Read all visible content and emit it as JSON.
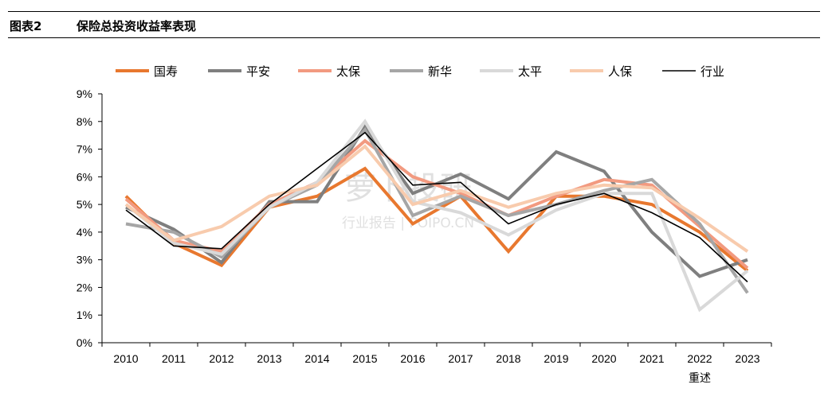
{
  "header": {
    "figure_number": "图表2",
    "title": "保险总投资收益率表现"
  },
  "watermark": {
    "brand": "萝卜投研",
    "sub": "行业报告 | POIPO.CN"
  },
  "colors": {
    "国寿": "#e8782f",
    "平安": "#7f7f7f",
    "太保": "#f29a80",
    "新华": "#a6a6a6",
    "太平": "#d9d9d9",
    "人保": "#f8cbad",
    "行业": "#000000"
  },
  "chart_data": {
    "type": "line",
    "title": "",
    "xlabel": "",
    "ylabel": "",
    "ylim": [
      0,
      9
    ],
    "y_ticks": [
      "0%",
      "1%",
      "2%",
      "3%",
      "4%",
      "5%",
      "6%",
      "7%",
      "8%",
      "9%"
    ],
    "categories": [
      "2010",
      "2011",
      "2012",
      "2013",
      "2014",
      "2015",
      "2016",
      "2017",
      "2018",
      "2019",
      "2020",
      "2021",
      "2022",
      "2023"
    ],
    "category_note": "重述",
    "legend_position": "top",
    "grid": false,
    "series": [
      {
        "name": "国寿",
        "values": [
          5.3,
          3.6,
          2.8,
          4.9,
          5.3,
          6.3,
          4.3,
          5.3,
          3.3,
          5.3,
          5.3,
          5.0,
          4.0,
          2.6
        ]
      },
      {
        "name": "平安",
        "values": [
          4.9,
          4.1,
          2.9,
          5.1,
          5.1,
          7.8,
          5.4,
          6.1,
          5.2,
          6.9,
          6.2,
          4.0,
          2.4,
          3.0
        ]
      },
      {
        "name": "太保",
        "values": [
          5.2,
          3.7,
          3.3,
          5.0,
          5.8,
          7.3,
          6.0,
          5.4,
          4.6,
          5.3,
          5.9,
          5.7,
          4.2,
          2.7
        ]
      },
      {
        "name": "新华",
        "values": [
          4.3,
          4.0,
          3.1,
          4.9,
          5.7,
          7.7,
          4.6,
          5.3,
          4.6,
          5.0,
          5.5,
          5.9,
          4.3,
          1.8
        ]
      },
      {
        "name": "太平",
        "values": [
          5.0,
          3.6,
          3.2,
          4.9,
          5.8,
          8.0,
          5.1,
          4.7,
          3.9,
          4.8,
          5.4,
          5.4,
          1.2,
          2.6
        ]
      },
      {
        "name": "人保",
        "values": [
          5.0,
          3.7,
          4.2,
          5.3,
          5.7,
          7.1,
          5.0,
          5.5,
          4.9,
          5.4,
          5.7,
          5.6,
          4.5,
          3.3
        ]
      },
      {
        "name": "行业",
        "values": [
          4.8,
          3.5,
          3.4,
          5.0,
          6.3,
          7.6,
          5.7,
          5.8,
          4.3,
          5.0,
          5.4,
          4.7,
          3.8,
          2.2
        ]
      }
    ]
  }
}
